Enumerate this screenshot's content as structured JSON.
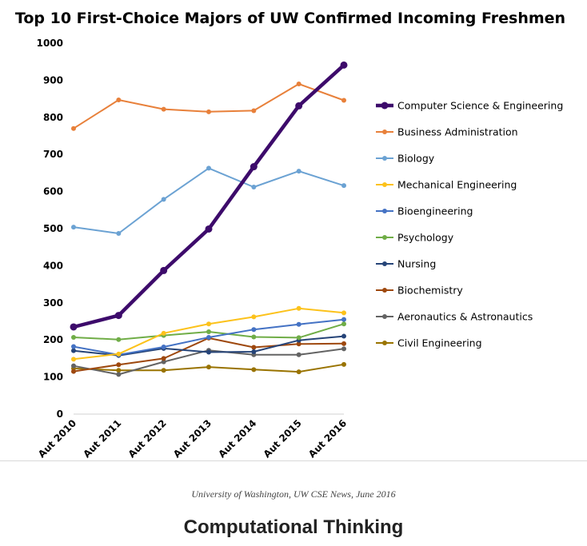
{
  "chart_data": {
    "type": "line",
    "title": "Top 10 First-Choice Majors of UW Confirmed Incoming Freshmen",
    "xlabel": "",
    "ylabel": "",
    "ylim": [
      0,
      1000
    ],
    "yticks": [
      0,
      100,
      200,
      300,
      400,
      500,
      600,
      700,
      800,
      900,
      1000
    ],
    "categories": [
      "Aut 2010",
      "Aut 2011",
      "Aut 2012",
      "Aut 2013",
      "Aut 2014",
      "Aut 2015",
      "Aut 2016"
    ],
    "legend_position": "right",
    "series": [
      {
        "name": "Computer Science & Engineering",
        "color": "#3d0b6b",
        "emphasis": true,
        "values": [
          235,
          266,
          387,
          499,
          667,
          831,
          941
        ]
      },
      {
        "name": "Business Administration",
        "color": "#e8803a",
        "values": [
          770,
          847,
          822,
          815,
          818,
          890,
          846
        ]
      },
      {
        "name": "Biology",
        "color": "#6ba2d3",
        "values": [
          504,
          487,
          579,
          663,
          612,
          655,
          616
        ]
      },
      {
        "name": "Mechanical Engineering",
        "color": "#fcc21b",
        "values": [
          148,
          162,
          218,
          243,
          262,
          285,
          273
        ]
      },
      {
        "name": "Bioengineering",
        "color": "#4472c4",
        "values": [
          182,
          160,
          181,
          207,
          228,
          242,
          255
        ]
      },
      {
        "name": "Psychology",
        "color": "#70ad47",
        "values": [
          207,
          201,
          212,
          222,
          208,
          206,
          243
        ]
      },
      {
        "name": "Nursing",
        "color": "#264478",
        "values": [
          171,
          158,
          177,
          167,
          168,
          199,
          210
        ]
      },
      {
        "name": "Biochemistry",
        "color": "#9e480e",
        "values": [
          115,
          133,
          150,
          205,
          180,
          189,
          190
        ]
      },
      {
        "name": "Aeronautics & Astronautics",
        "color": "#636363",
        "values": [
          130,
          107,
          141,
          172,
          160,
          160,
          176
        ]
      },
      {
        "name": "Civil Engineering",
        "color": "#997300",
        "values": [
          123,
          118,
          118,
          127,
          120,
          114,
          134
        ]
      }
    ]
  },
  "caption": "University of Washington, UW CSE News, June 2016",
  "heading": "Computational Thinking"
}
